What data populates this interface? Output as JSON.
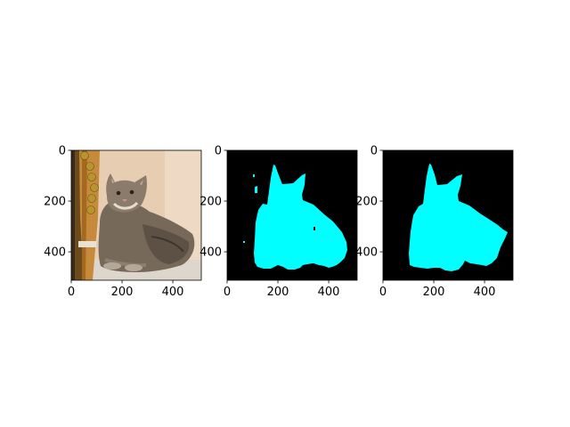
{
  "figure": {
    "background": "#ffffff",
    "mask_color": "#00ffff",
    "mask_background": "#000000"
  },
  "chart_data": [
    {
      "type": "image",
      "content": "photo of a tabby cat lying down beside a guitar headstock",
      "xlim": [
        0,
        512
      ],
      "ylim": [
        512,
        0
      ],
      "xticks": [
        0,
        200,
        400
      ],
      "yticks": [
        0,
        200,
        400
      ],
      "title": "",
      "xlabel": "",
      "ylabel": ""
    },
    {
      "type": "image",
      "content": "segmentation mask (cyan foreground on black) with small stray specks",
      "xlim": [
        0,
        512
      ],
      "ylim": [
        512,
        0
      ],
      "xticks": [
        0,
        200,
        400
      ],
      "yticks": [
        0,
        200,
        400
      ],
      "title": "",
      "xlabel": "",
      "ylabel": ""
    },
    {
      "type": "image",
      "content": "cleaned segmentation mask (cyan foreground on black)",
      "xlim": [
        0,
        512
      ],
      "ylim": [
        512,
        0
      ],
      "xticks": [
        0,
        200,
        400
      ],
      "yticks": [
        0,
        200,
        400
      ],
      "title": "",
      "xlabel": "",
      "ylabel": ""
    }
  ]
}
